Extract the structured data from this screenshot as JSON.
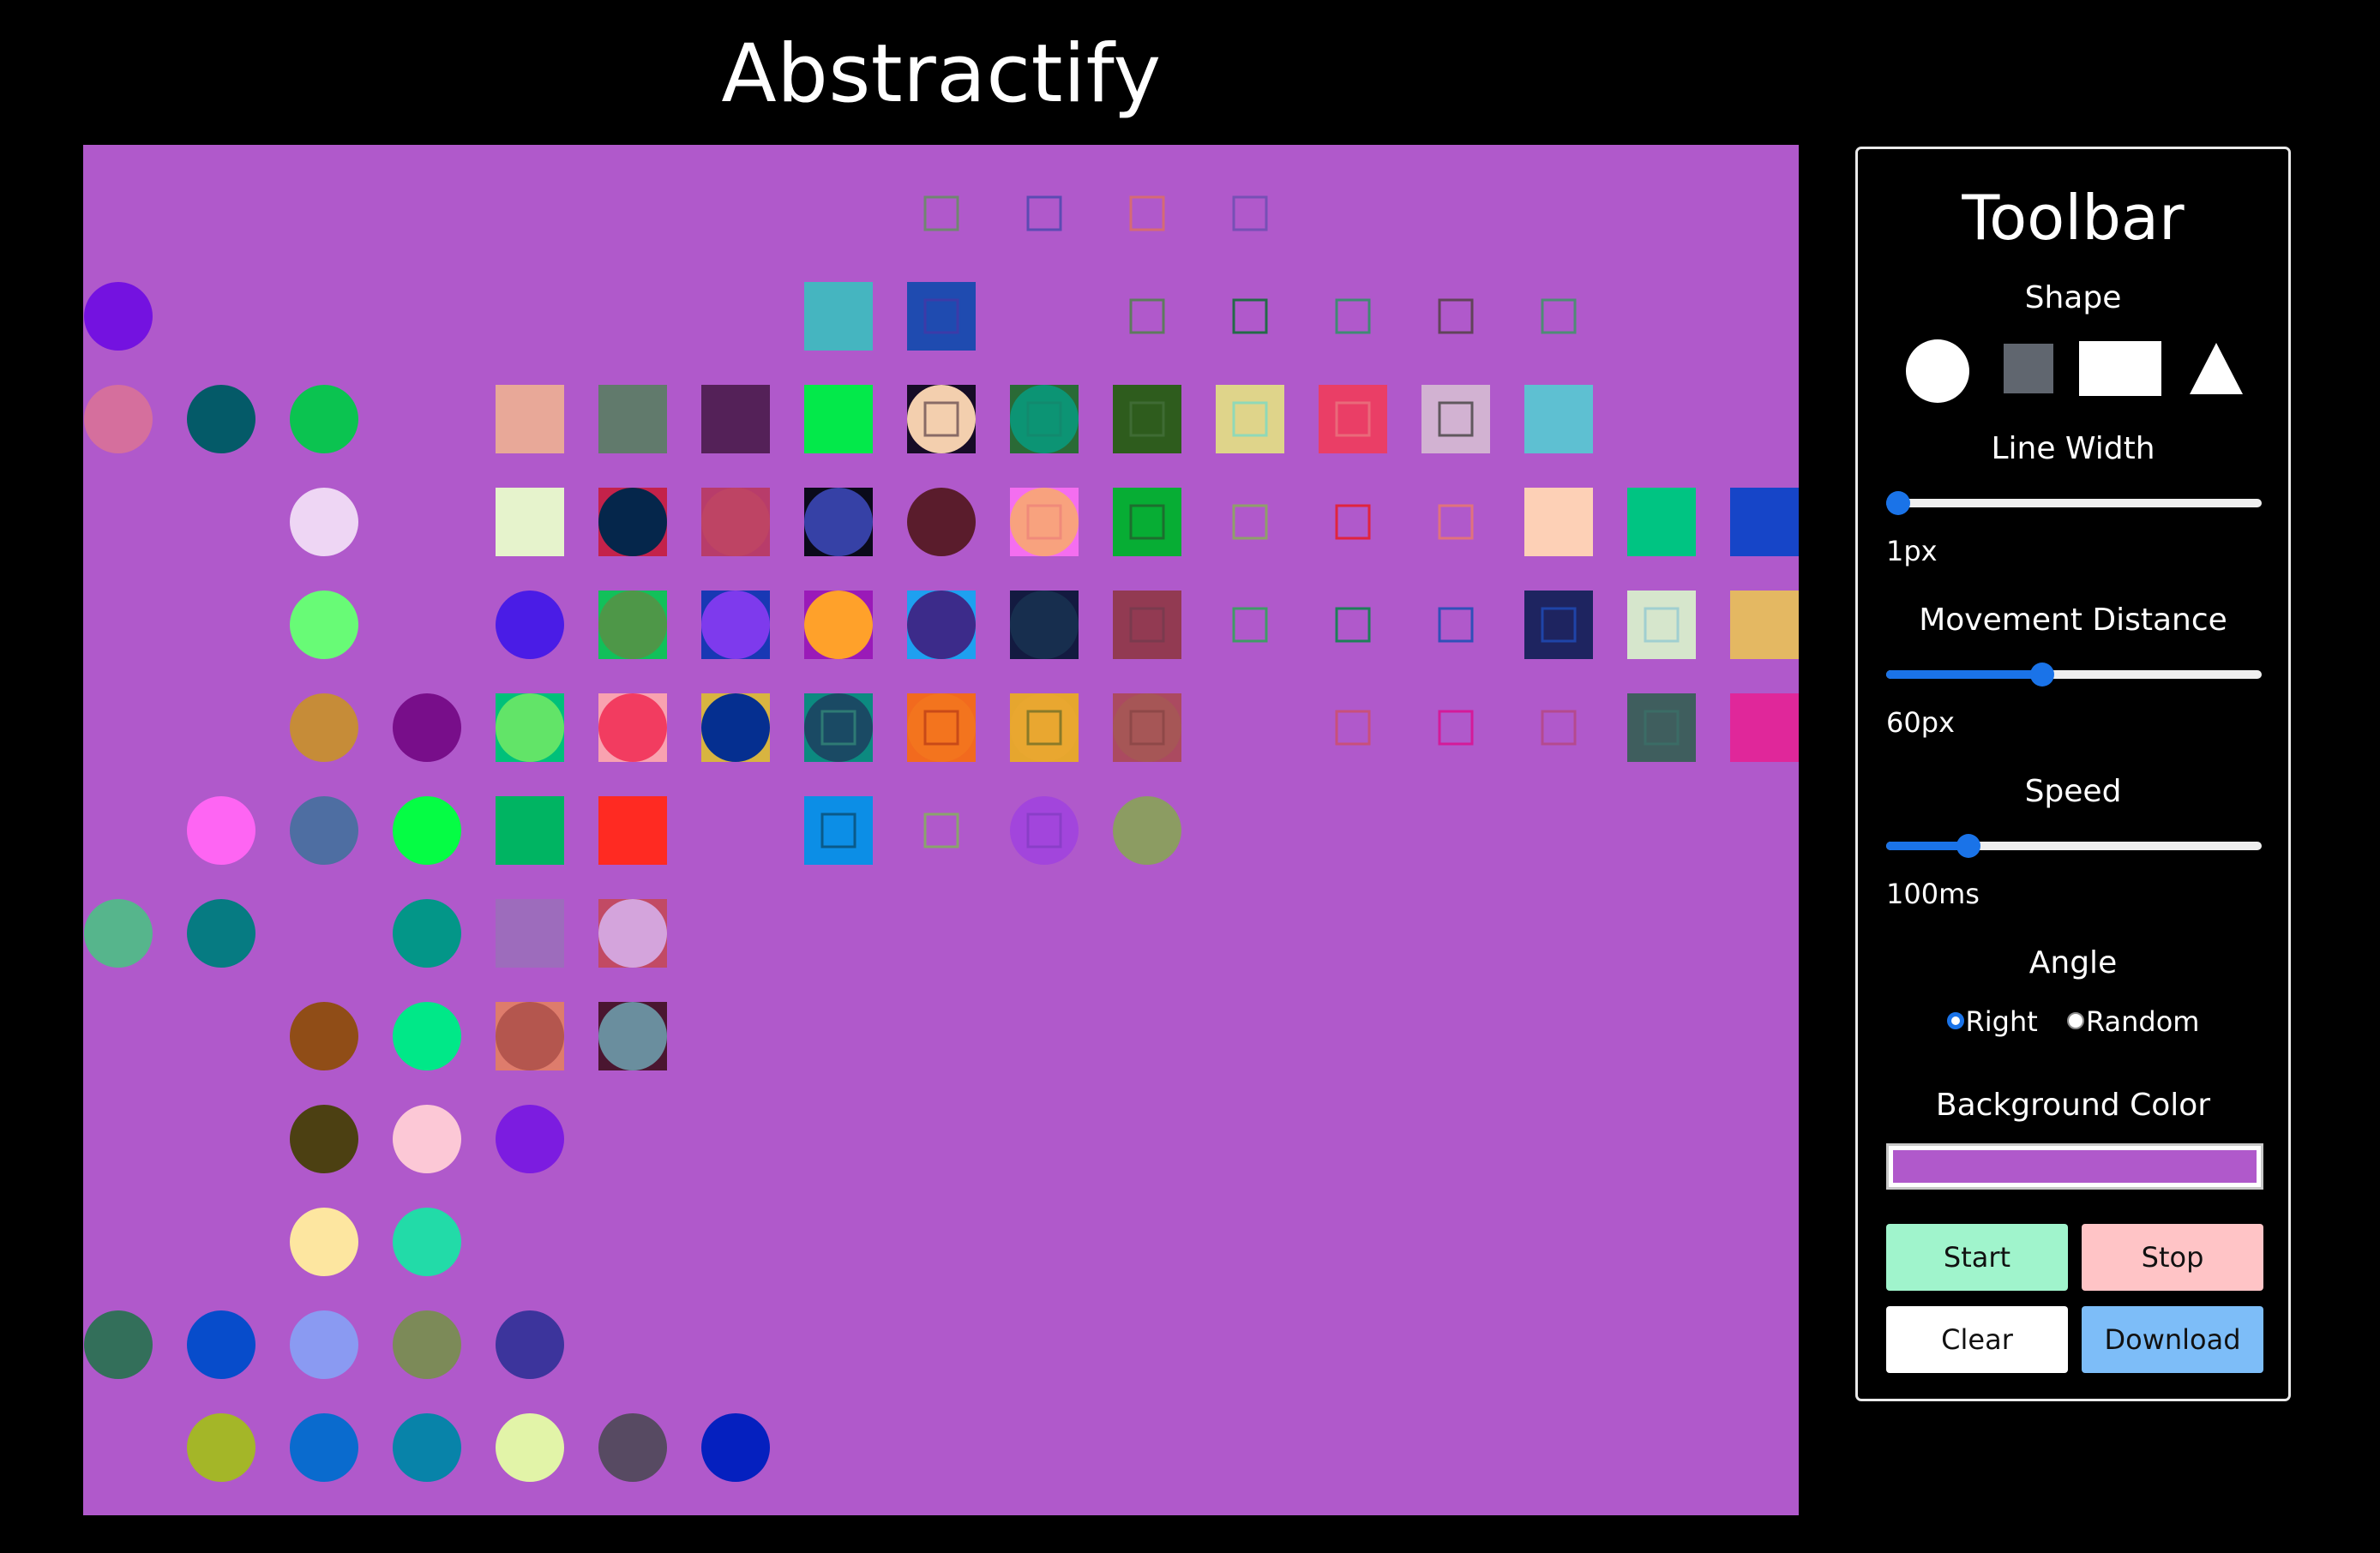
{
  "app": {
    "title": "Abstractify"
  },
  "canvas": {
    "background": "#b059cb",
    "shapes": [
      {
        "kind": "sq-outline",
        "col": 8,
        "row": 0,
        "stroke": "#708670"
      },
      {
        "kind": "sq-outline",
        "col": 9,
        "row": 0,
        "stroke": "#5b4bb3"
      },
      {
        "kind": "sq-outline",
        "col": 10,
        "row": 0,
        "stroke": "#d56b75"
      },
      {
        "kind": "sq-outline",
        "col": 11,
        "row": 0,
        "stroke": "#7650b5"
      },
      {
        "kind": "circle",
        "col": 0,
        "row": 1,
        "fill": "#7412e0"
      },
      {
        "kind": "square",
        "col": 7,
        "row": 1,
        "fill": "#45b5c0"
      },
      {
        "kind": "square",
        "col": 8,
        "row": 1,
        "fill": "#1f4bb0",
        "inner": "#3c3ba8"
      },
      {
        "kind": "sq-outline",
        "col": 10,
        "row": 1,
        "stroke": "#5e7a5e"
      },
      {
        "kind": "sq-outline",
        "col": 11,
        "row": 1,
        "stroke": "#236a48"
      },
      {
        "kind": "sq-outline",
        "col": 12,
        "row": 1,
        "stroke": "#3f8a73"
      },
      {
        "kind": "sq-outline",
        "col": 13,
        "row": 1,
        "stroke": "#61445a"
      },
      {
        "kind": "sq-outline",
        "col": 14,
        "row": 1,
        "stroke": "#4e8c75"
      },
      {
        "kind": "circle",
        "col": 0,
        "row": 2,
        "fill": "#d56f9d"
      },
      {
        "kind": "circle",
        "col": 1,
        "row": 2,
        "fill": "#045a68"
      },
      {
        "kind": "circle",
        "col": 2,
        "row": 2,
        "fill": "#0bc350"
      },
      {
        "kind": "square",
        "col": 4,
        "row": 2,
        "fill": "#e8a898"
      },
      {
        "kind": "square",
        "col": 5,
        "row": 2,
        "fill": "#617a6c"
      },
      {
        "kind": "square",
        "col": 6,
        "row": 2,
        "fill": "#542158"
      },
      {
        "kind": "square",
        "col": 7,
        "row": 2,
        "fill": "#03e94a"
      },
      {
        "kind": "square",
        "col": 8,
        "row": 2,
        "fill": "#160c26",
        "circle": "#f3cfae",
        "inner": "#886b66"
      },
      {
        "kind": "square",
        "col": 9,
        "row": 2,
        "fill": "#2a6a36",
        "circle": "#0c9474",
        "inner": "#128a6e"
      },
      {
        "kind": "square",
        "col": 10,
        "row": 2,
        "fill": "#2e5c1d",
        "inner": "#3f6b34"
      },
      {
        "kind": "square",
        "col": 11,
        "row": 2,
        "fill": "#dfd48a",
        "inner": "#8fd9b8"
      },
      {
        "kind": "square",
        "col": 12,
        "row": 2,
        "fill": "#ea3e66",
        "inner": "#e96a7a"
      },
      {
        "kind": "square",
        "col": 13,
        "row": 2,
        "fill": "#d2b2d2",
        "inner": "#60585e"
      },
      {
        "kind": "square",
        "col": 14,
        "row": 2,
        "fill": "#5ec0d2"
      },
      {
        "kind": "circle",
        "col": 2,
        "row": 3,
        "fill": "#eed6f4"
      },
      {
        "kind": "square",
        "col": 4,
        "row": 3,
        "fill": "#e6f3cc"
      },
      {
        "kind": "square",
        "col": 5,
        "row": 3,
        "fill": "#c4224a",
        "circle": "#05264b"
      },
      {
        "kind": "square",
        "col": 6,
        "row": 3,
        "fill": "#b83c6a",
        "circle": "#be4464"
      },
      {
        "kind": "square",
        "col": 7,
        "row": 3,
        "fill": "#0a0a1a",
        "circle": "#3641a6"
      },
      {
        "kind": "circle",
        "col": 8,
        "row": 3,
        "fill": "#5a1c2c"
      },
      {
        "kind": "square",
        "col": 9,
        "row": 3,
        "fill": "#f46ef0",
        "circle": "#f8a27e",
        "inner": "#f08a7a"
      },
      {
        "kind": "square",
        "col": 10,
        "row": 3,
        "fill": "#07ad34",
        "inner": "#1d6e2e"
      },
      {
        "kind": "sq-outline",
        "col": 11,
        "row": 3,
        "stroke": "#8fa06a"
      },
      {
        "kind": "sq-outline",
        "col": 12,
        "row": 3,
        "stroke": "#e0243e"
      },
      {
        "kind": "sq-outline",
        "col": 13,
        "row": 3,
        "stroke": "#e0737c"
      },
      {
        "kind": "square",
        "col": 14,
        "row": 3,
        "fill": "#fdd0b6"
      },
      {
        "kind": "square",
        "col": 15,
        "row": 3,
        "fill": "#00c482"
      },
      {
        "kind": "square",
        "col": 16,
        "row": 3,
        "fill": "#1645c8"
      },
      {
        "kind": "circle",
        "col": 2,
        "row": 4,
        "fill": "#68fb76"
      },
      {
        "kind": "circle",
        "col": 4,
        "row": 4,
        "fill": "#4a1ce6"
      },
      {
        "kind": "square",
        "col": 5,
        "row": 4,
        "fill": "#12c05a",
        "circle": "#4e9748"
      },
      {
        "kind": "square",
        "col": 6,
        "row": 4,
        "fill": "#1838b4",
        "circle": "#7e3aed"
      },
      {
        "kind": "square",
        "col": 7,
        "row": 4,
        "fill": "#9a1ab8",
        "circle": "#ffa12a"
      },
      {
        "kind": "square",
        "col": 8,
        "row": 4,
        "fill": "#1ea0f0",
        "circle": "#3c2b8a"
      },
      {
        "kind": "square",
        "col": 9,
        "row": 4,
        "fill": "#131a40",
        "circle": "#172e4e"
      },
      {
        "kind": "square",
        "col": 10,
        "row": 4,
        "fill": "#923a52",
        "inner": "#7a3a4e"
      },
      {
        "kind": "sq-outline",
        "col": 11,
        "row": 4,
        "stroke": "#3f9a66"
      },
      {
        "kind": "sq-outline",
        "col": 12,
        "row": 4,
        "stroke": "#1d7f58"
      },
      {
        "kind": "sq-outline",
        "col": 13,
        "row": 4,
        "stroke": "#2f50b8"
      },
      {
        "kind": "square",
        "col": 14,
        "row": 4,
        "fill": "#1e2460",
        "inner": "#1f44a8"
      },
      {
        "kind": "square",
        "col": 15,
        "row": 4,
        "fill": "#d6e6cc",
        "inner": "#a0cfd0"
      },
      {
        "kind": "square",
        "col": 16,
        "row": 4,
        "fill": "#e4b862"
      },
      {
        "kind": "circle",
        "col": 2,
        "row": 5,
        "fill": "#c68c38"
      },
      {
        "kind": "circle",
        "col": 3,
        "row": 5,
        "fill": "#780e8a"
      },
      {
        "kind": "square",
        "col": 4,
        "row": 5,
        "fill": "#00c07a",
        "circle": "#62e468"
      },
      {
        "kind": "square",
        "col": 5,
        "row": 5,
        "fill": "#f9a2b0",
        "circle": "#f23c60"
      },
      {
        "kind": "square",
        "col": 6,
        "row": 5,
        "fill": "#d8b440",
        "circle": "#052f90"
      },
      {
        "kind": "square",
        "col": 7,
        "row": 5,
        "fill": "#0c8a80",
        "circle": "#1a4a64",
        "inner": "#2e7a74"
      },
      {
        "kind": "square",
        "col": 8,
        "row": 5,
        "fill": "#f26a1e",
        "circle": "#f3741e",
        "inner": "#c84a18"
      },
      {
        "kind": "square",
        "col": 9,
        "row": 5,
        "fill": "#e6a62e",
        "circle": "#e9a730",
        "inner": "#8a7a28"
      },
      {
        "kind": "square",
        "col": 10,
        "row": 5,
        "fill": "#ab4a60",
        "circle": "#a65656",
        "inner": "#8e4848"
      },
      {
        "kind": "sq-outline",
        "col": 12,
        "row": 5,
        "stroke": "#c8507a"
      },
      {
        "kind": "sq-outline",
        "col": 13,
        "row": 5,
        "stroke": "#d41a9a"
      },
      {
        "kind": "sq-outline",
        "col": 14,
        "row": 5,
        "stroke": "#b44a8e"
      },
      {
        "kind": "square",
        "col": 15,
        "row": 5,
        "fill": "#3f5e5e",
        "inner": "#3b6c66"
      },
      {
        "kind": "square",
        "col": 16,
        "row": 5,
        "fill": "#e0279a"
      },
      {
        "kind": "circle",
        "col": 1,
        "row": 6,
        "fill": "#fe65f3"
      },
      {
        "kind": "circle",
        "col": 2,
        "row": 6,
        "fill": "#4e6ea2"
      },
      {
        "kind": "circle",
        "col": 3,
        "row": 6,
        "fill": "#05fd44"
      },
      {
        "kind": "square",
        "col": 4,
        "row": 6,
        "fill": "#00b462"
      },
      {
        "kind": "square",
        "col": 5,
        "row": 6,
        "fill": "#ff2a22"
      },
      {
        "kind": "square",
        "col": 7,
        "row": 6,
        "fill": "#0c8ee6",
        "inner": "#0a5a8a"
      },
      {
        "kind": "sq-outline",
        "col": 8,
        "row": 6,
        "stroke": "#8aa46c"
      },
      {
        "kind": "circle",
        "col": 9,
        "row": 6,
        "fill": "#a245dc",
        "inner": "#8a3ec8"
      },
      {
        "kind": "circle",
        "col": 10,
        "row": 6,
        "fill": "#8c9c62"
      },
      {
        "kind": "circle",
        "col": 0,
        "row": 7,
        "fill": "#56b58c"
      },
      {
        "kind": "circle",
        "col": 1,
        "row": 7,
        "fill": "#067b82"
      },
      {
        "kind": "circle",
        "col": 3,
        "row": 7,
        "fill": "#039688"
      },
      {
        "kind": "square",
        "col": 4,
        "row": 7,
        "fill": "#9d6cbc"
      },
      {
        "kind": "square",
        "col": 5,
        "row": 7,
        "fill": "#c24a64",
        "circle": "#d4a4dc"
      },
      {
        "kind": "circle",
        "col": 2,
        "row": 8,
        "fill": "#904d17"
      },
      {
        "kind": "circle",
        "col": 3,
        "row": 8,
        "fill": "#00e888"
      },
      {
        "kind": "square",
        "col": 4,
        "row": 8,
        "fill": "#de7c6c",
        "circle": "#b4564e"
      },
      {
        "kind": "square",
        "col": 5,
        "row": 8,
        "fill": "#4a1630",
        "circle": "#6a8e9e"
      },
      {
        "kind": "circle",
        "col": 2,
        "row": 9,
        "fill": "#4c4012"
      },
      {
        "kind": "circle",
        "col": 3,
        "row": 9,
        "fill": "#fcc8d6"
      },
      {
        "kind": "circle",
        "col": 4,
        "row": 9,
        "fill": "#7c1ce0"
      },
      {
        "kind": "circle",
        "col": 2,
        "row": 10,
        "fill": "#fde6a0"
      },
      {
        "kind": "circle",
        "col": 3,
        "row": 10,
        "fill": "#22dba8"
      },
      {
        "kind": "circle",
        "col": 0,
        "row": 11,
        "fill": "#336f5a"
      },
      {
        "kind": "circle",
        "col": 1,
        "row": 11,
        "fill": "#074ccb"
      },
      {
        "kind": "circle",
        "col": 2,
        "row": 11,
        "fill": "#8a9af2"
      },
      {
        "kind": "circle",
        "col": 3,
        "row": 11,
        "fill": "#7c8a58"
      },
      {
        "kind": "circle",
        "col": 4,
        "row": 11,
        "fill": "#3c349c"
      },
      {
        "kind": "circle",
        "col": 1,
        "row": 12,
        "fill": "#a4b628"
      },
      {
        "kind": "circle",
        "col": 2,
        "row": 12,
        "fill": "#0a6bce"
      },
      {
        "kind": "circle",
        "col": 3,
        "row": 12,
        "fill": "#0883a9"
      },
      {
        "kind": "circle",
        "col": 4,
        "row": 12,
        "fill": "#e2f4a8"
      },
      {
        "kind": "circle",
        "col": 5,
        "row": 12,
        "fill": "#574a62"
      },
      {
        "kind": "circle",
        "col": 6,
        "row": 12,
        "fill": "#0520bf"
      }
    ]
  },
  "toolbar": {
    "title": "Toolbar",
    "shape_label": "Shape",
    "shapes": [
      "circle",
      "square",
      "rectangle",
      "triangle"
    ],
    "line_width": {
      "label": "Line Width",
      "value_text": "1px",
      "fraction": 0.0
    },
    "movement_distance": {
      "label": "Movement Distance",
      "value_text": "60px",
      "fraction": 0.41
    },
    "speed": {
      "label": "Speed",
      "value_text": "100ms",
      "fraction": 0.2
    },
    "angle": {
      "label": "Angle",
      "options": [
        "Right",
        "Random"
      ],
      "selected": "Right"
    },
    "background_color": {
      "label": "Background Color",
      "value": "#b059cb"
    },
    "buttons": {
      "start": "Start",
      "stop": "Stop",
      "clear": "Clear",
      "download": "Download"
    },
    "button_colors": {
      "start": "#a0f4cc",
      "stop": "#ffc4c6",
      "clear": "#ffffff",
      "download": "#7dbdf8"
    }
  }
}
